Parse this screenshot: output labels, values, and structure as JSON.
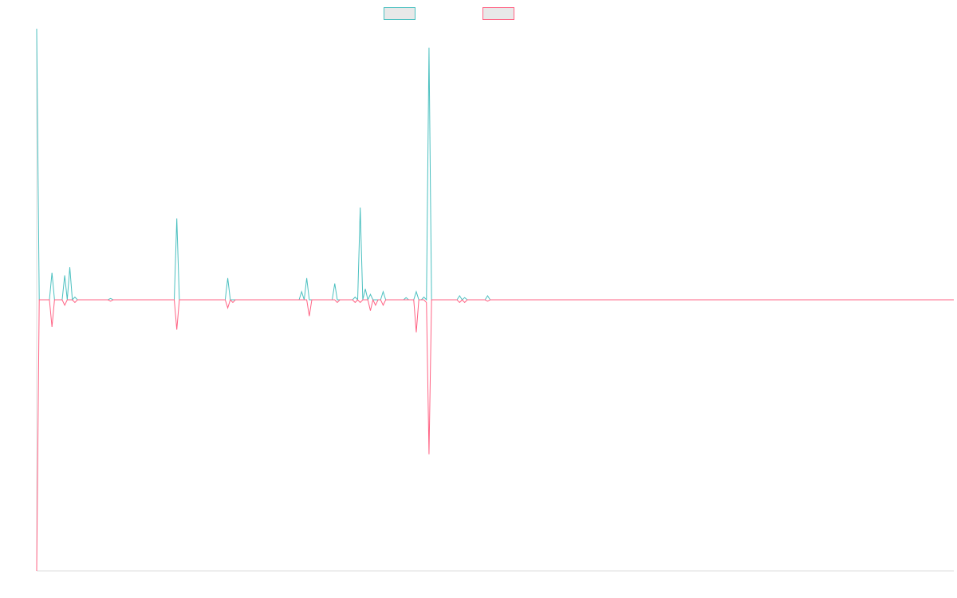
{
  "chart_data": {
    "type": "line",
    "title": "",
    "xlabel": "",
    "ylabel": "",
    "legend_position": "top-center",
    "grid": false,
    "xlim": [
      0,
      360
    ],
    "ylim": [
      -100,
      100
    ],
    "series": [
      {
        "name": "",
        "color": "#4bc0c0",
        "points": [
          [
            0,
            100
          ],
          [
            1,
            0
          ],
          [
            5,
            0
          ],
          [
            6,
            10
          ],
          [
            7,
            0
          ],
          [
            10,
            0
          ],
          [
            11,
            9
          ],
          [
            12,
            0
          ],
          [
            13,
            12
          ],
          [
            14,
            0
          ],
          [
            15,
            1
          ],
          [
            16,
            0
          ],
          [
            28,
            0
          ],
          [
            29,
            0.5
          ],
          [
            30,
            0
          ],
          [
            54,
            0
          ],
          [
            55,
            30
          ],
          [
            56,
            0
          ],
          [
            74,
            0
          ],
          [
            75,
            8
          ],
          [
            76,
            0
          ],
          [
            103,
            0
          ],
          [
            104,
            3
          ],
          [
            105,
            0
          ],
          [
            106,
            8
          ],
          [
            107,
            0
          ],
          [
            116,
            0
          ],
          [
            117,
            6
          ],
          [
            118,
            0
          ],
          [
            124,
            0
          ],
          [
            125,
            1
          ],
          [
            126,
            0
          ],
          [
            127,
            34
          ],
          [
            128,
            0
          ],
          [
            129,
            4
          ],
          [
            130,
            0
          ],
          [
            131,
            2
          ],
          [
            132,
            0
          ],
          [
            135,
            0
          ],
          [
            136,
            3
          ],
          [
            137,
            0
          ],
          [
            144,
            0
          ],
          [
            145,
            0.8
          ],
          [
            146,
            0
          ],
          [
            148,
            0
          ],
          [
            149,
            3
          ],
          [
            150,
            0
          ],
          [
            151,
            0
          ],
          [
            152,
            1
          ],
          [
            153,
            0
          ],
          [
            154,
            93
          ],
          [
            155,
            0
          ],
          [
            165,
            0
          ],
          [
            166,
            1.5
          ],
          [
            167,
            0
          ],
          [
            168,
            0.8
          ],
          [
            169,
            0
          ],
          [
            176,
            0
          ],
          [
            177,
            1.5
          ],
          [
            178,
            0
          ],
          [
            360,
            0
          ]
        ]
      },
      {
        "name": "",
        "color": "#ff6384",
        "points": [
          [
            0,
            -100
          ],
          [
            1,
            0
          ],
          [
            5,
            0
          ],
          [
            6,
            -10
          ],
          [
            7,
            0
          ],
          [
            10,
            0
          ],
          [
            11,
            -2
          ],
          [
            12,
            0
          ],
          [
            14,
            0
          ],
          [
            15,
            -1
          ],
          [
            16,
            0
          ],
          [
            28,
            0
          ],
          [
            29,
            -0.5
          ],
          [
            30,
            0
          ],
          [
            54,
            0
          ],
          [
            55,
            -11
          ],
          [
            56,
            0
          ],
          [
            74,
            0
          ],
          [
            75,
            -3
          ],
          [
            76,
            0
          ],
          [
            77,
            -1
          ],
          [
            78,
            0
          ],
          [
            106,
            0
          ],
          [
            107,
            -6
          ],
          [
            108,
            0
          ],
          [
            117,
            0
          ],
          [
            118,
            -1
          ],
          [
            119,
            0
          ],
          [
            124,
            0
          ],
          [
            125,
            -1
          ],
          [
            126,
            0
          ],
          [
            127,
            -1
          ],
          [
            128,
            0
          ],
          [
            130,
            0
          ],
          [
            131,
            -4
          ],
          [
            132,
            0
          ],
          [
            133,
            -2
          ],
          [
            134,
            0
          ],
          [
            135,
            0
          ],
          [
            136,
            -2
          ],
          [
            137,
            0
          ],
          [
            148,
            0
          ],
          [
            149,
            -12
          ],
          [
            150,
            0
          ],
          [
            152,
            0
          ],
          [
            153,
            -1
          ],
          [
            154,
            -57
          ],
          [
            155,
            0
          ],
          [
            165,
            0
          ],
          [
            166,
            -1
          ],
          [
            167,
            0
          ],
          [
            168,
            -1
          ],
          [
            169,
            0
          ],
          [
            176,
            0
          ],
          [
            177,
            -0.5
          ],
          [
            178,
            0
          ],
          [
            360,
            0
          ]
        ]
      }
    ]
  }
}
